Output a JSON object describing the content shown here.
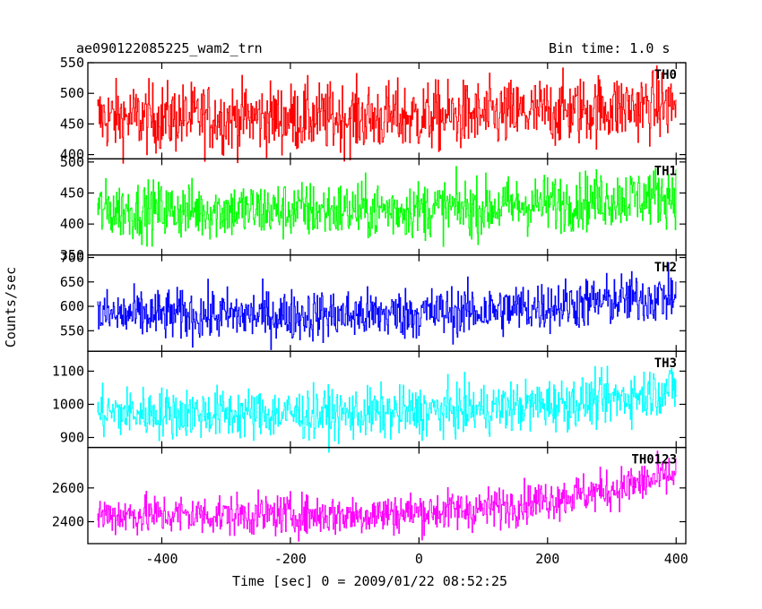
{
  "header": {
    "title": "ae090122085225_wam2_trn",
    "bin_time": "Bin time: 1.0 s"
  },
  "chart_data": {
    "type": "line",
    "xlabel": "Time [sec] 0 = 2009/01/22 08:52:25",
    "ylabel": "Counts/sec",
    "xlim": [
      -515,
      415
    ],
    "xticks": [
      -400,
      -200,
      0,
      200,
      400
    ],
    "x_range": [
      -500,
      400
    ],
    "grid": false,
    "panels": [
      {
        "name": "TH0",
        "color": "#ff0000",
        "ylim": [
          393,
          550
        ],
        "yticks": [
          400,
          450,
          500,
          550
        ],
        "trend": [
          [
            -500,
            460
          ],
          [
            -100,
            460
          ],
          [
            100,
            463
          ],
          [
            400,
            482
          ]
        ],
        "noise": 28
      },
      {
        "name": "TH1",
        "color": "#00ff00",
        "ylim": [
          350,
          505
        ],
        "yticks": [
          350,
          400,
          450,
          500
        ],
        "trend": [
          [
            -500,
            422
          ],
          [
            -100,
            422
          ],
          [
            100,
            426
          ],
          [
            400,
            448
          ]
        ],
        "noise": 23
      },
      {
        "name": "TH2",
        "color": "#0000ff",
        "ylim": [
          508,
          705
        ],
        "yticks": [
          550,
          600,
          650,
          700
        ],
        "trend": [
          [
            -500,
            582
          ],
          [
            -100,
            582
          ],
          [
            100,
            590
          ],
          [
            400,
            622
          ]
        ],
        "noise": 26
      },
      {
        "name": "TH3",
        "color": "#00ffff",
        "ylim": [
          870,
          1160
        ],
        "yticks": [
          900,
          1000,
          1100
        ],
        "trend": [
          [
            -500,
            975
          ],
          [
            -100,
            970
          ],
          [
            100,
            985
          ],
          [
            300,
            1015
          ],
          [
            400,
            1050
          ]
        ],
        "noise": 38
      },
      {
        "name": "TH0123",
        "color": "#ff00ff",
        "ylim": [
          2270,
          2840
        ],
        "yticks": [
          2400,
          2600
        ],
        "trend": [
          [
            -500,
            2440
          ],
          [
            -100,
            2440
          ],
          [
            100,
            2475
          ],
          [
            300,
            2590
          ],
          [
            400,
            2680
          ]
        ],
        "noise": 60
      }
    ]
  }
}
